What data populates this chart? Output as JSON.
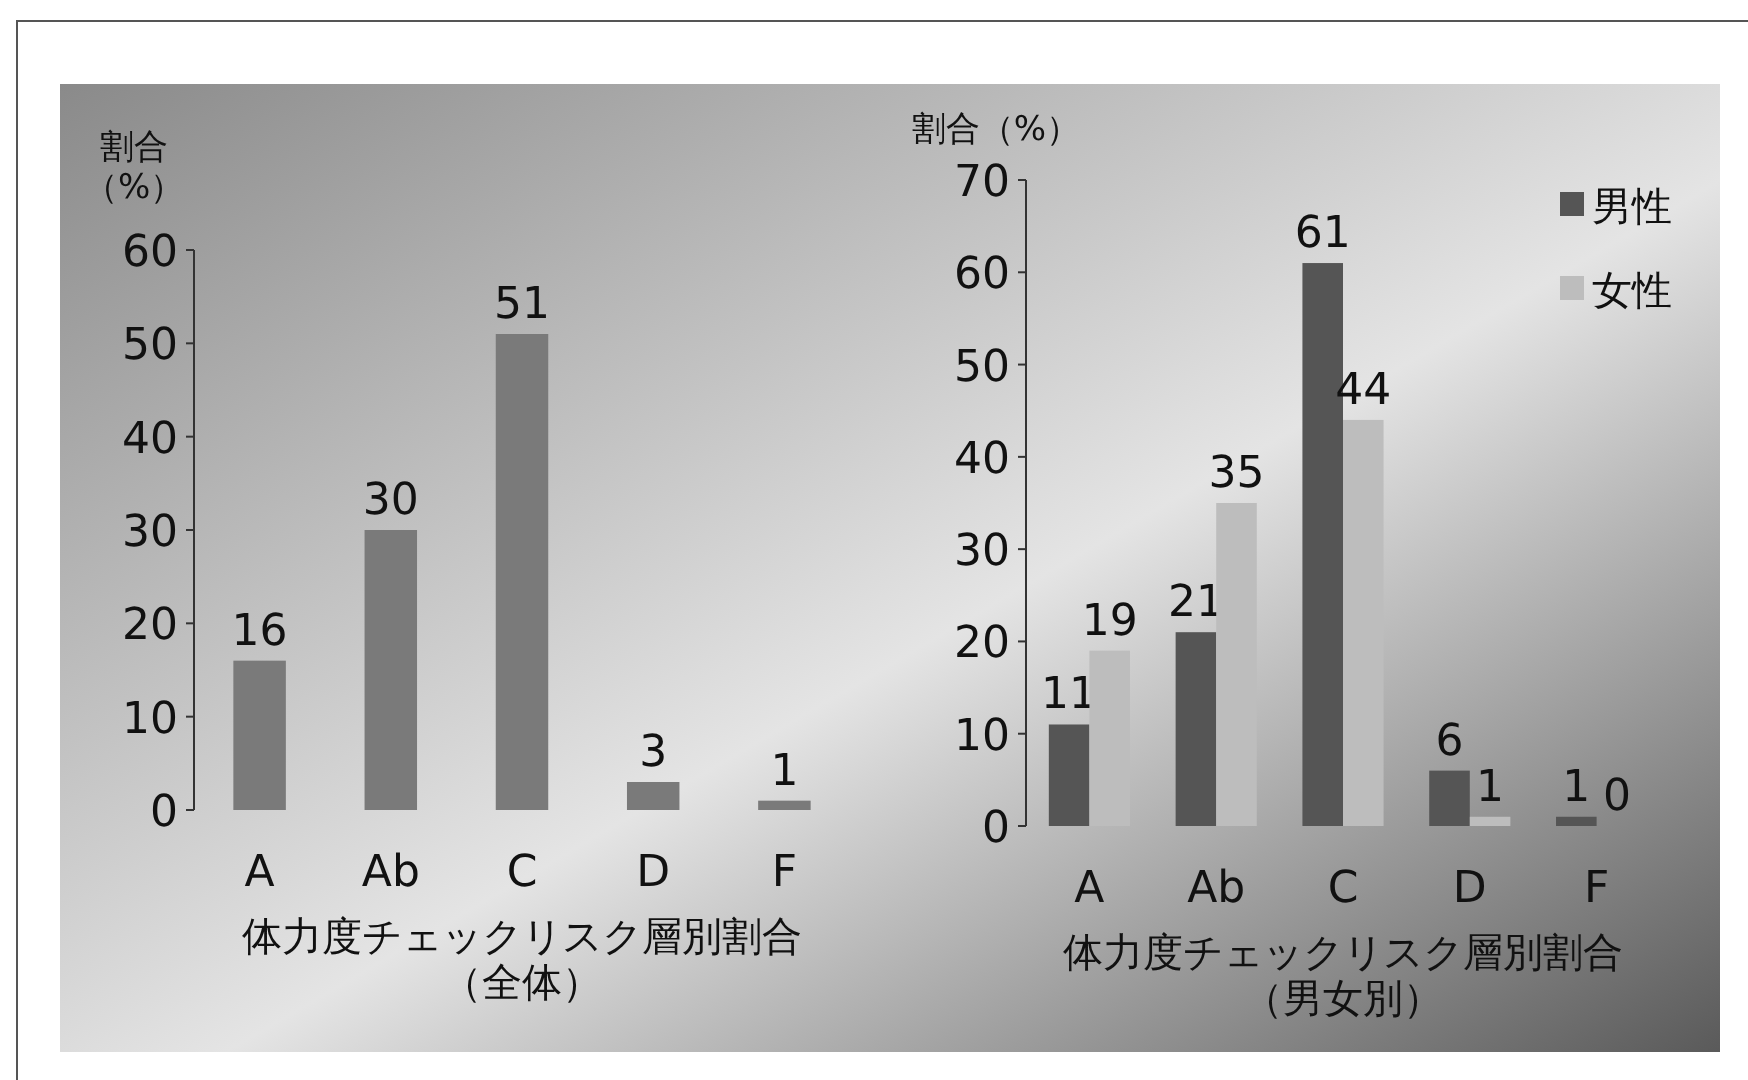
{
  "chart_data": [
    {
      "type": "bar",
      "xlabel": "体力度チェックリスク層別割合（全体）",
      "ylabel": "割合（%）",
      "categories": [
        "A",
        "Ab",
        "C",
        "D",
        "F"
      ],
      "values": [
        16,
        30,
        51,
        3,
        1
      ],
      "color": "#7a7a7a",
      "ylim": [
        0,
        60
      ],
      "yticks": [
        0,
        10,
        20,
        30,
        40,
        50,
        60
      ],
      "data_labels": true,
      "grid": false,
      "legend": false
    },
    {
      "type": "bar",
      "xlabel": "体力度チェックリスク層別割合（男女別）",
      "ylabel": "割合（%）",
      "categories": [
        "A",
        "Ab",
        "C",
        "D",
        "F"
      ],
      "series": [
        {
          "name": "男性",
          "color": "#555555",
          "values": [
            11,
            21,
            61,
            6,
            1
          ]
        },
        {
          "name": "女性",
          "color": "#bdbdbd",
          "values": [
            19,
            35,
            44,
            1,
            0
          ]
        }
      ],
      "ylim": [
        0,
        70
      ],
      "yticks": [
        0,
        10,
        20,
        30,
        40,
        50,
        60,
        70
      ],
      "data_labels": true,
      "grid": false,
      "legend": "top right"
    }
  ]
}
